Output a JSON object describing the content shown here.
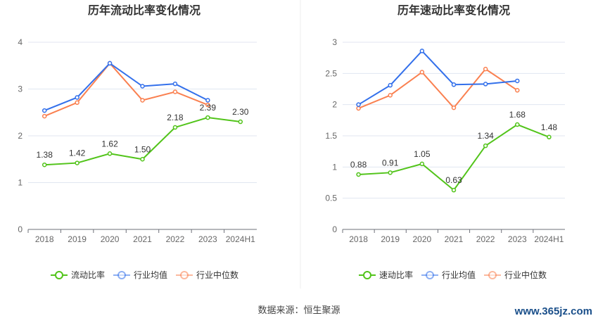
{
  "chart_data": [
    {
      "type": "line",
      "title": "历年流动比率变化情况",
      "categories": [
        "2018",
        "2019",
        "2020",
        "2021",
        "2022",
        "2023",
        "2024H1"
      ],
      "ylim": [
        0,
        4
      ],
      "yticks": [
        "0",
        "1",
        "2",
        "3",
        "4"
      ],
      "grid": true,
      "legend_position": "bottom",
      "series": [
        {
          "name": "流动比率",
          "color": "#52c41a",
          "values": [
            1.38,
            1.42,
            1.62,
            1.5,
            2.18,
            2.39,
            2.3
          ],
          "labels": [
            "1.38",
            "1.42",
            "1.62",
            "1.50",
            "2.18",
            "2.39",
            "2.30"
          ]
        },
        {
          "name": "行业均值",
          "color": "#3370eb",
          "values": [
            2.54,
            2.82,
            3.55,
            3.06,
            3.11,
            2.76,
            null
          ]
        },
        {
          "name": "行业中位数",
          "color": "#fa8050",
          "values": [
            2.42,
            2.71,
            3.55,
            2.76,
            2.94,
            2.66,
            null
          ]
        }
      ]
    },
    {
      "type": "line",
      "title": "历年速动比率变化情况",
      "categories": [
        "2018",
        "2019",
        "2020",
        "2021",
        "2022",
        "2023",
        "2024H1"
      ],
      "ylim": [
        0,
        3
      ],
      "yticks": [
        "0",
        "0.5",
        "1",
        "1.5",
        "2",
        "2.5",
        "3"
      ],
      "grid": true,
      "legend_position": "bottom",
      "series": [
        {
          "name": "速动比率",
          "color": "#52c41a",
          "values": [
            0.88,
            0.91,
            1.05,
            0.63,
            1.34,
            1.68,
            1.48
          ],
          "labels": [
            "0.88",
            "0.91",
            "1.05",
            "0.63",
            "1.34",
            "1.68",
            "1.48"
          ]
        },
        {
          "name": "行业均值",
          "color": "#3370eb",
          "values": [
            2.0,
            2.31,
            2.86,
            2.32,
            2.33,
            2.38,
            null
          ]
        },
        {
          "name": "行业中位数",
          "color": "#fa8050",
          "values": [
            1.94,
            2.15,
            2.52,
            1.95,
            2.57,
            2.23,
            null
          ]
        }
      ]
    }
  ],
  "source": "数据来源：恒生聚源",
  "watermark": "www.365jz.com"
}
